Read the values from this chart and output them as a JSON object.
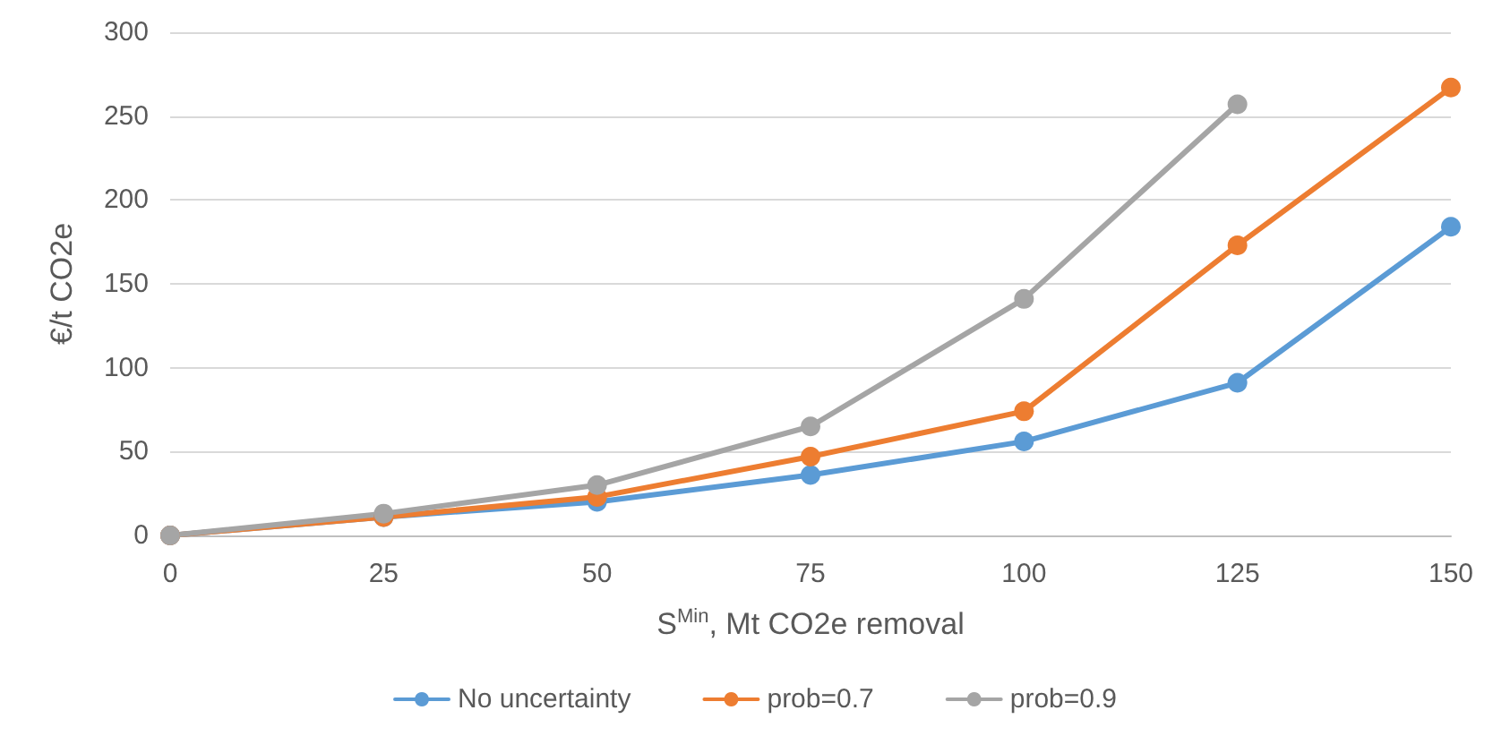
{
  "chart_data": {
    "type": "line",
    "xlabel": "S$^{Min}$, Mt CO2e removal",
    "ylabel": "€/t CO2e",
    "x": [
      0,
      25,
      50,
      75,
      100,
      125,
      150
    ],
    "series": [
      {
        "name": "No uncertainty",
        "color": "#5b9bd5",
        "values": [
          0,
          11,
          20,
          36,
          56,
          91,
          184
        ]
      },
      {
        "name": "prob=0.7",
        "color": "#ed7d31",
        "values": [
          0,
          11,
          23,
          47,
          74,
          173,
          267
        ]
      },
      {
        "name": "prob=0.9",
        "color": "#a5a5a5",
        "values": [
          0,
          13,
          30,
          65,
          141,
          257,
          null
        ]
      }
    ],
    "xlim": [
      0,
      150
    ],
    "xticks": [
      0,
      25,
      50,
      75,
      100,
      125,
      150
    ],
    "ylim": [
      0,
      300
    ],
    "yticks": [
      0,
      50,
      100,
      150,
      200,
      250,
      300
    ],
    "grid": "y",
    "legend": "bottom",
    "marker": "circle",
    "line_style": "solid"
  }
}
